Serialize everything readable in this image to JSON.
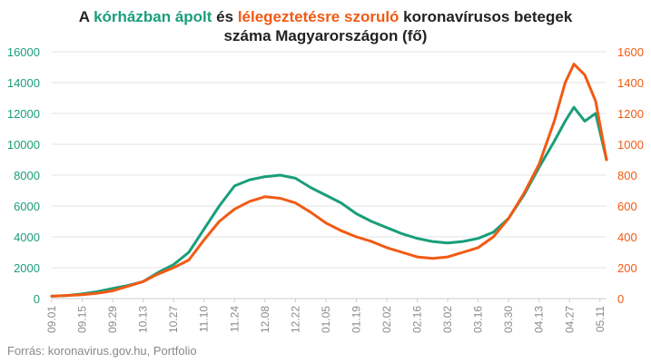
{
  "title": {
    "prefix": "A ",
    "green": "kórházban ápolt",
    "middle": " és ",
    "orange": "lélegeztetésre szoruló",
    "suffix": " koronavírusos betegek",
    "line2": "száma Magyarországon  (fő)"
  },
  "source": "Forrás: koronavirus.gov.hu, Portfolio",
  "colors": {
    "green": "#1a9e7a",
    "orange": "#f25a14",
    "grid": "#e3e3e3"
  },
  "chart_data": {
    "type": "line",
    "title": "A kórházban ápolt és lélegeztetésre szoruló koronavírusos betegek száma Magyarországon (fő)",
    "x_ticks": [
      "09.01",
      "09.15",
      "09.29",
      "10.13",
      "10.27",
      "11.10",
      "11.24",
      "12.08",
      "12.22",
      "01.05",
      "01.19",
      "02.02",
      "02.16",
      "03.02",
      "03.16",
      "03.30",
      "04.13",
      "04.27",
      "05.11"
    ],
    "x_day_range": [
      0,
      255
    ],
    "y_left": {
      "min": 0,
      "max": 16000,
      "ticks": [
        0,
        2000,
        4000,
        6000,
        8000,
        10000,
        12000,
        14000,
        16000
      ]
    },
    "y_right": {
      "min": 0,
      "max": 1600,
      "ticks": [
        0,
        200,
        400,
        600,
        800,
        1000,
        1200,
        1400,
        1600
      ]
    },
    "grid": true,
    "series": [
      {
        "name": "kórházban ápolt",
        "axis": "left",
        "color": "#1a9e7a",
        "points": [
          [
            0,
            150
          ],
          [
            7,
            200
          ],
          [
            14,
            300
          ],
          [
            21,
            450
          ],
          [
            28,
            650
          ],
          [
            35,
            850
          ],
          [
            42,
            1100
          ],
          [
            49,
            1700
          ],
          [
            56,
            2200
          ],
          [
            63,
            3000
          ],
          [
            70,
            4500
          ],
          [
            77,
            6000
          ],
          [
            84,
            7300
          ],
          [
            91,
            7700
          ],
          [
            98,
            7900
          ],
          [
            105,
            8000
          ],
          [
            112,
            7800
          ],
          [
            119,
            7200
          ],
          [
            126,
            6700
          ],
          [
            133,
            6200
          ],
          [
            140,
            5500
          ],
          [
            147,
            5000
          ],
          [
            154,
            4600
          ],
          [
            161,
            4200
          ],
          [
            168,
            3900
          ],
          [
            175,
            3700
          ],
          [
            182,
            3600
          ],
          [
            189,
            3700
          ],
          [
            196,
            3900
          ],
          [
            203,
            4300
          ],
          [
            210,
            5200
          ],
          [
            217,
            6700
          ],
          [
            224,
            8500
          ],
          [
            231,
            10200
          ],
          [
            236,
            11500
          ],
          [
            240,
            12400
          ],
          [
            245,
            11500
          ],
          [
            250,
            12000
          ],
          [
            255,
            9000
          ]
        ]
      },
      {
        "name": "lélegeztetésre szoruló",
        "axis": "right",
        "color": "#f25a14",
        "points": [
          [
            0,
            15
          ],
          [
            7,
            20
          ],
          [
            14,
            25
          ],
          [
            21,
            35
          ],
          [
            28,
            50
          ],
          [
            35,
            80
          ],
          [
            42,
            110
          ],
          [
            49,
            160
          ],
          [
            56,
            200
          ],
          [
            63,
            250
          ],
          [
            70,
            380
          ],
          [
            77,
            500
          ],
          [
            84,
            580
          ],
          [
            91,
            630
          ],
          [
            98,
            660
          ],
          [
            105,
            650
          ],
          [
            112,
            620
          ],
          [
            119,
            560
          ],
          [
            126,
            490
          ],
          [
            133,
            440
          ],
          [
            140,
            400
          ],
          [
            147,
            370
          ],
          [
            154,
            330
          ],
          [
            161,
            300
          ],
          [
            168,
            270
          ],
          [
            175,
            260
          ],
          [
            182,
            270
          ],
          [
            189,
            300
          ],
          [
            196,
            330
          ],
          [
            203,
            400
          ],
          [
            210,
            520
          ],
          [
            217,
            680
          ],
          [
            224,
            870
          ],
          [
            231,
            1150
          ],
          [
            236,
            1400
          ],
          [
            240,
            1520
          ],
          [
            245,
            1450
          ],
          [
            250,
            1280
          ],
          [
            255,
            900
          ]
        ]
      }
    ]
  }
}
